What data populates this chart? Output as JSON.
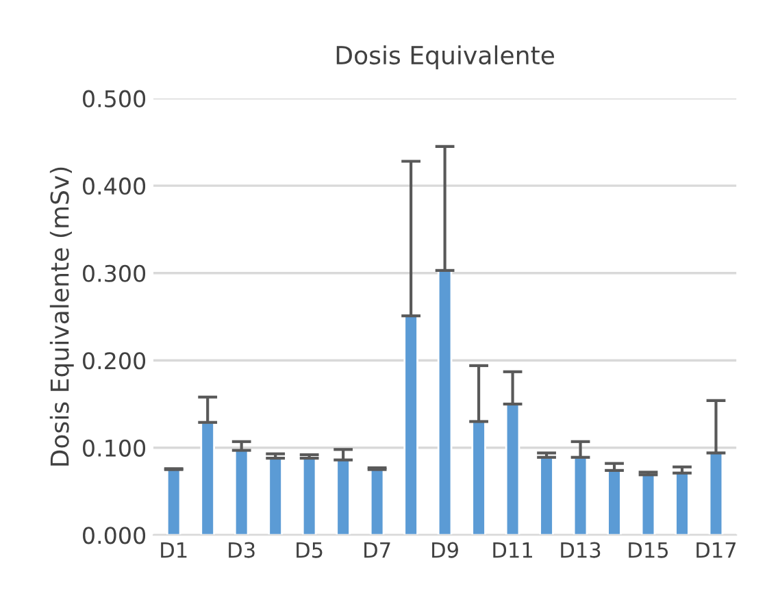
{
  "chart_data": {
    "type": "bar",
    "title": "Dosis Equivalente",
    "ylabel": "Dosis Equivalente (mSv)",
    "categories": [
      "D1",
      null,
      "D3",
      null,
      "D5",
      null,
      "D7",
      null,
      "D9",
      null,
      "D11",
      null,
      "D13",
      null,
      "D15",
      null,
      "D17"
    ],
    "values": [
      0.075,
      0.129,
      0.097,
      0.088,
      0.088,
      0.086,
      0.075,
      0.251,
      0.303,
      0.13,
      0.15,
      0.089,
      0.089,
      0.074,
      0.069,
      0.071,
      0.094
    ],
    "errors": [
      [
        0.075,
        0.076
      ],
      [
        0.129,
        0.158
      ],
      [
        0.097,
        0.107
      ],
      [
        0.088,
        0.093
      ],
      [
        0.088,
        0.092
      ],
      [
        0.086,
        0.098
      ],
      [
        0.075,
        0.077
      ],
      [
        0.251,
        0.428
      ],
      [
        0.303,
        0.445
      ],
      [
        0.13,
        0.194
      ],
      [
        0.15,
        0.187
      ],
      [
        0.089,
        0.094
      ],
      [
        0.089,
        0.107
      ],
      [
        0.074,
        0.082
      ],
      [
        0.069,
        0.072
      ],
      [
        0.071,
        0.078
      ],
      [
        0.094,
        0.154
      ]
    ],
    "color": "#5b9bd5",
    "ylim": [
      0,
      0.5
    ],
    "yticks": [
      {
        "value": 0,
        "label": "0.000"
      },
      {
        "value": 0.1,
        "label": "0.100"
      },
      {
        "value": 0.2,
        "label": "0.200"
      },
      {
        "value": 0.3,
        "label": "0.300"
      },
      {
        "value": 0.4,
        "label": "0.400"
      },
      {
        "value": 0.5,
        "label": "0.500"
      }
    ],
    "grid": "y",
    "legend": false
  }
}
